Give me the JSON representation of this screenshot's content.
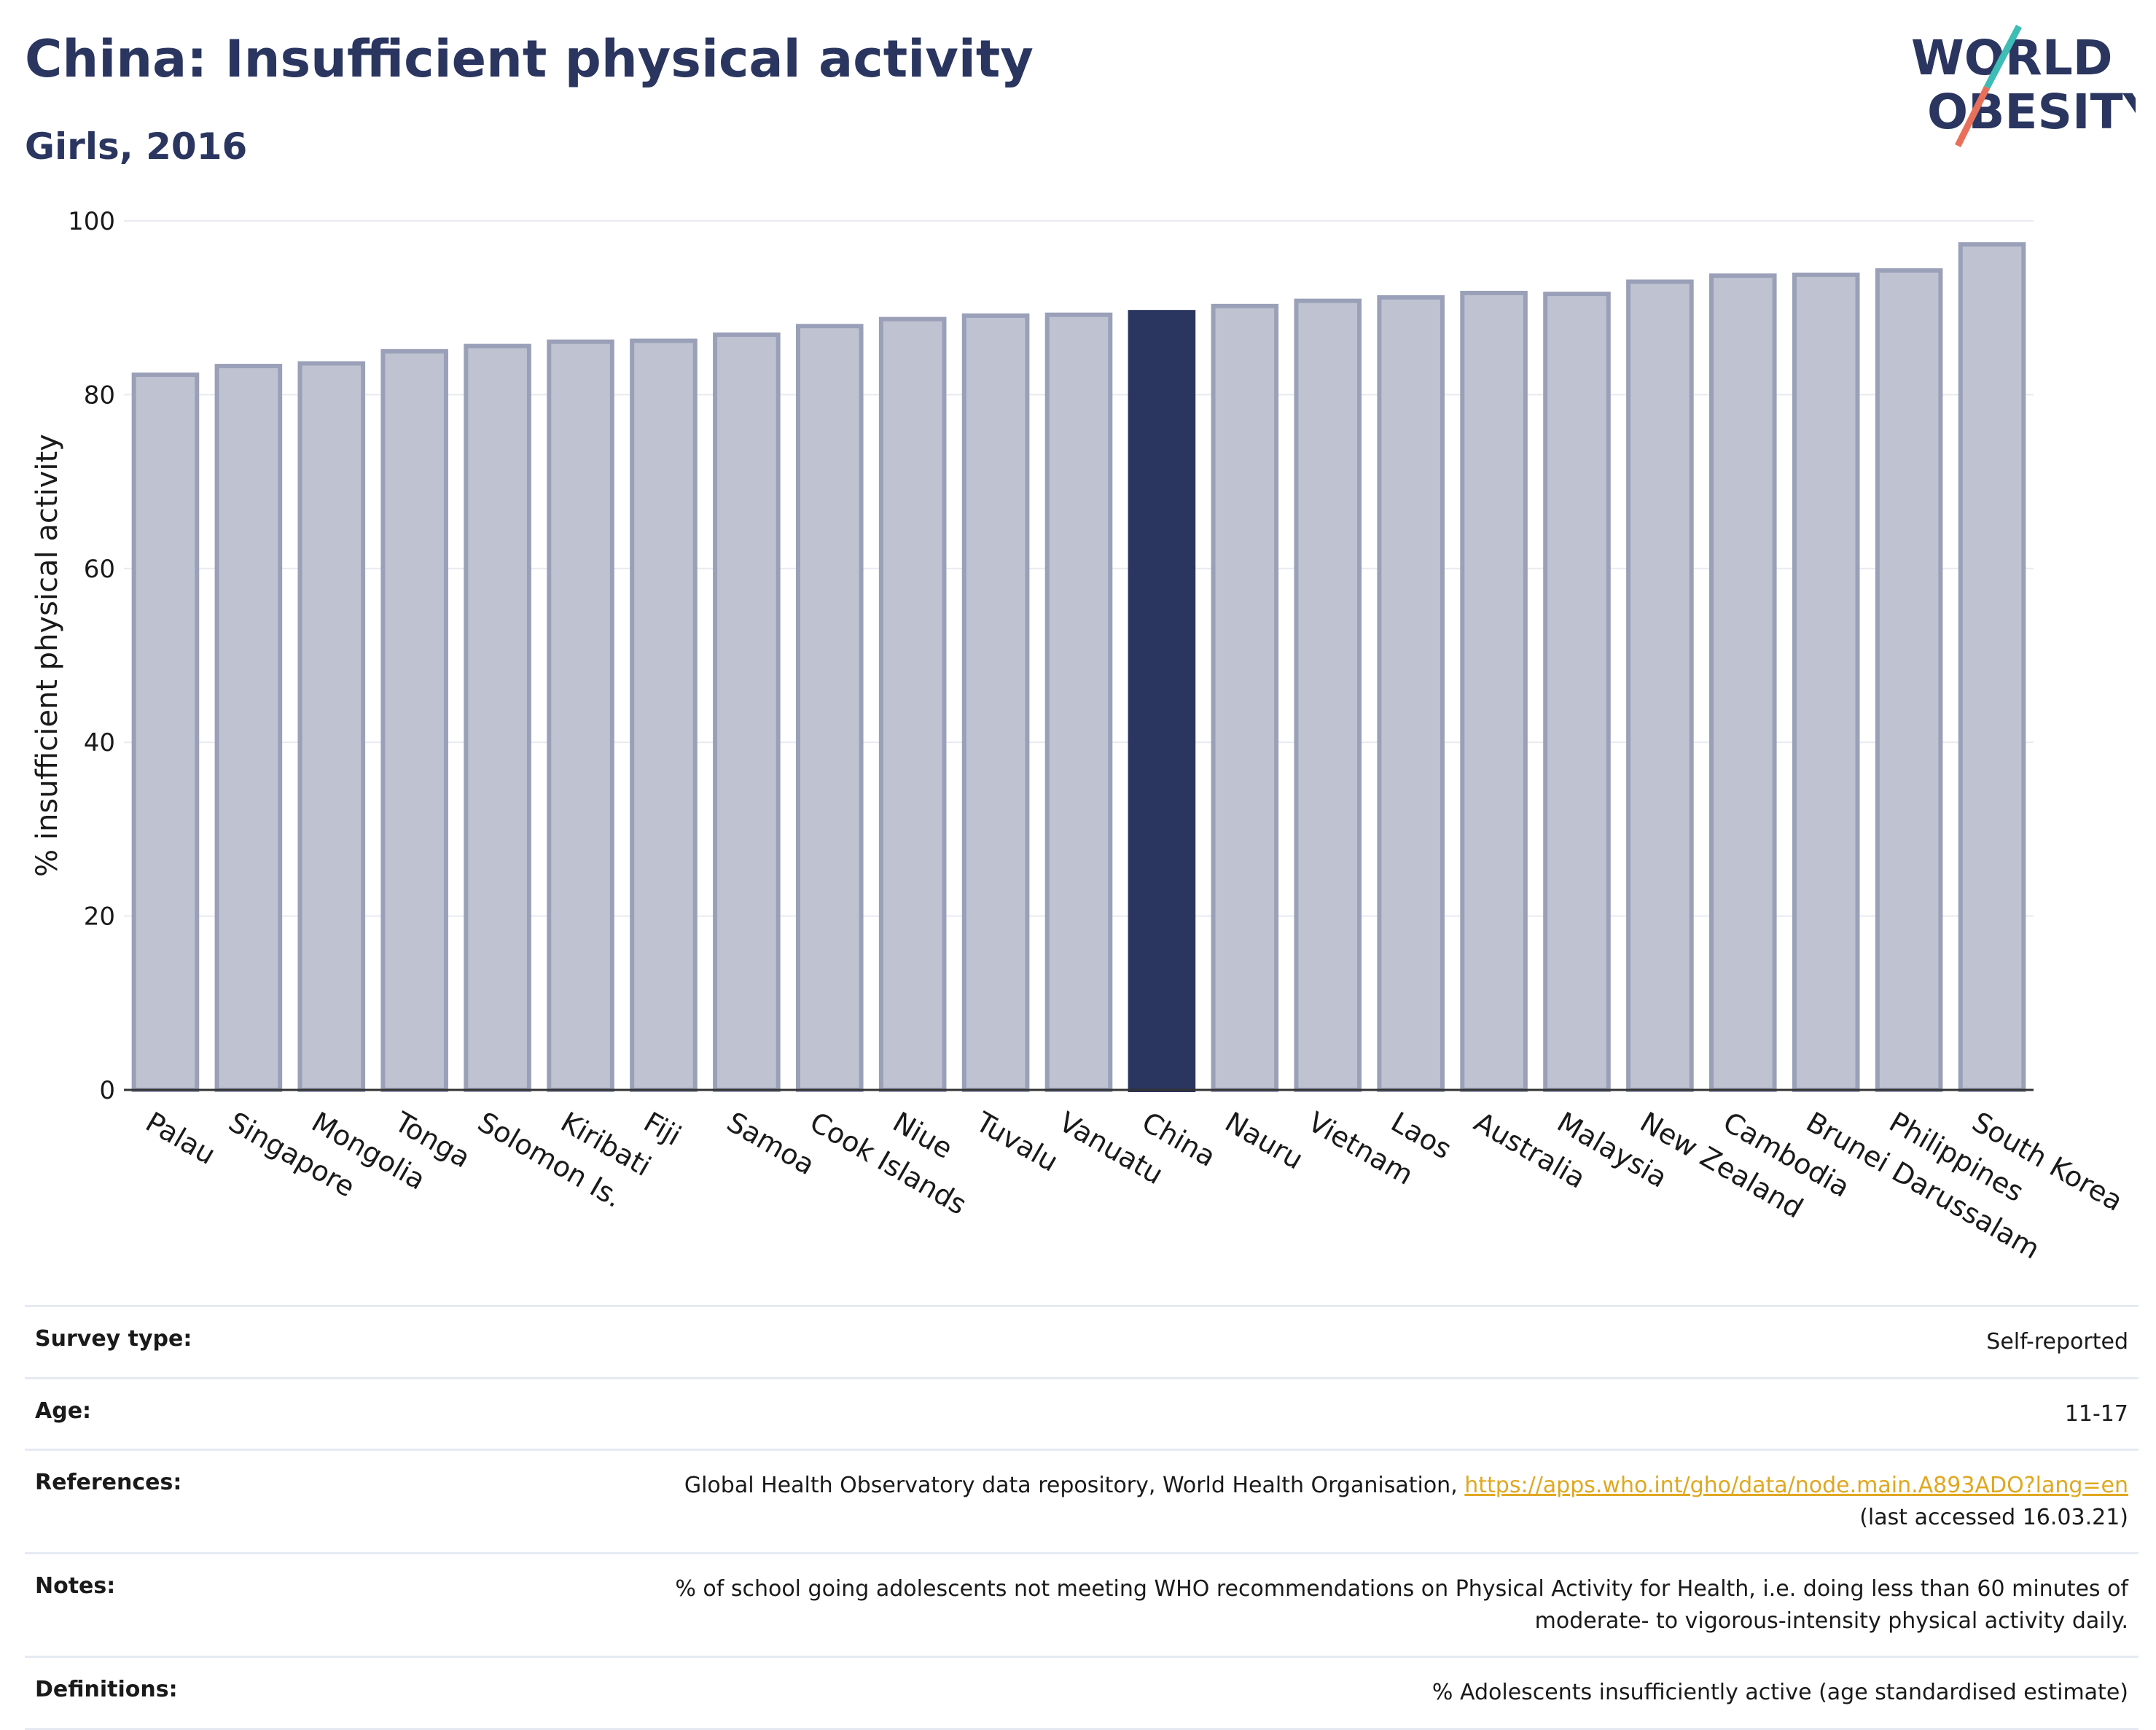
{
  "header": {
    "title": "China: Insufficient physical activity",
    "subtitle": "Girls, 2016",
    "logo_line1": "WORLD",
    "logo_line2": "OBESITY"
  },
  "colors": {
    "bar_default": "#bfc3d1",
    "bar_border": "#9aa0b8",
    "bar_highlight": "#2a3560",
    "title": "#2a3560",
    "link": "#e0a820",
    "logo_teal": "#3dbdb5",
    "logo_red": "#e8705a"
  },
  "chart_data": {
    "type": "bar",
    "title": "China: Insufficient physical activity",
    "subtitle": "Girls, 2016",
    "xlabel": "",
    "ylabel": "% insufficient physical activity",
    "ylim": [
      0,
      100
    ],
    "yticks": [
      0,
      20,
      40,
      60,
      80,
      100
    ],
    "grid": true,
    "highlight": "China",
    "categories": [
      "Palau",
      "Singapore",
      "Mongolia",
      "Tonga",
      "Solomon Is.",
      "Kiribati",
      "Fiji",
      "Samoa",
      "Cook Islands",
      "Niue",
      "Tuvalu",
      "Vanuatu",
      "China",
      "Nauru",
      "Vietnam",
      "Laos",
      "Australia",
      "Malaysia",
      "New Zealand",
      "Cambodia",
      "Brunei Darussalam",
      "Philippines",
      "South Korea"
    ],
    "values": [
      82.3,
      83.3,
      83.6,
      85.0,
      85.6,
      86.1,
      86.2,
      86.9,
      87.9,
      88.7,
      89.1,
      89.2,
      89.5,
      90.2,
      90.8,
      91.2,
      91.7,
      91.6,
      93.0,
      93.7,
      93.8,
      94.3,
      97.3
    ]
  },
  "info": {
    "survey_type_label": "Survey type:",
    "survey_type_value": "Self-reported",
    "age_label": "Age:",
    "age_value": "11-17",
    "references_label": "References:",
    "references_text": "Global Health Observatory data repository, World Health Organisation, ",
    "references_link": "https://apps.who.int/gho/data/node.main.A893ADO?lang=en",
    "references_accessed": "(last accessed 16.03.21)",
    "notes_label": "Notes:",
    "notes_line1": "% of school going adolescents not meeting WHO recommendations on Physical Activity for Health, i.e. doing less than 60 minutes of",
    "notes_line2": "moderate- to vigorous-intensity physical activity daily.",
    "definitions_label": "Definitions:",
    "definitions_value": "% Adolescents insufficiently active (age standardised estimate)"
  }
}
